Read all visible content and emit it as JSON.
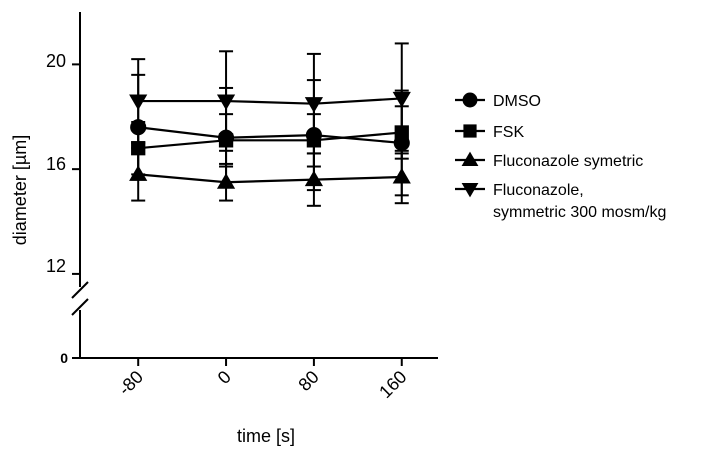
{
  "chart_data": {
    "type": "line",
    "xlabel": "time [s]",
    "ylabel": "diameter [µm]",
    "x": [
      -80,
      0,
      80,
      160
    ],
    "x_tick_labels": [
      "-80",
      "0",
      "80",
      "160"
    ],
    "xlim": [
      -133,
      193
    ],
    "y_tick_labels": [
      "0",
      "12",
      "16",
      "20"
    ],
    "yticks": [
      0,
      12,
      16,
      20
    ],
    "ylim_upper": [
      11.5,
      22
    ],
    "ylim_lower": [
      0,
      1.8
    ],
    "axis_break": true,
    "grid": false,
    "legend_position": "right",
    "series": [
      {
        "name": "DMSO",
        "marker": "circle",
        "values": [
          17.6,
          17.2,
          17.3,
          17.0
        ],
        "errors": [
          2.0,
          1.9,
          2.1,
          2.0
        ]
      },
      {
        "name": "FSK",
        "marker": "square",
        "values": [
          16.8,
          17.1,
          17.1,
          17.4
        ],
        "errors": [
          1.0,
          1.0,
          1.0,
          1.0
        ]
      },
      {
        "name": "Fluconazole symetric",
        "marker": "triangle-up",
        "values": [
          15.8,
          15.5,
          15.6,
          15.7
        ],
        "errors": [
          1.0,
          0.7,
          1.0,
          1.0
        ]
      },
      {
        "name": "Fluconazole,",
        "name_line2": "symmetric 300 mosm/kg",
        "marker": "triangle-down",
        "values": [
          18.6,
          18.6,
          18.5,
          18.7
        ],
        "errors": [
          1.6,
          1.9,
          1.9,
          2.1
        ]
      }
    ]
  }
}
